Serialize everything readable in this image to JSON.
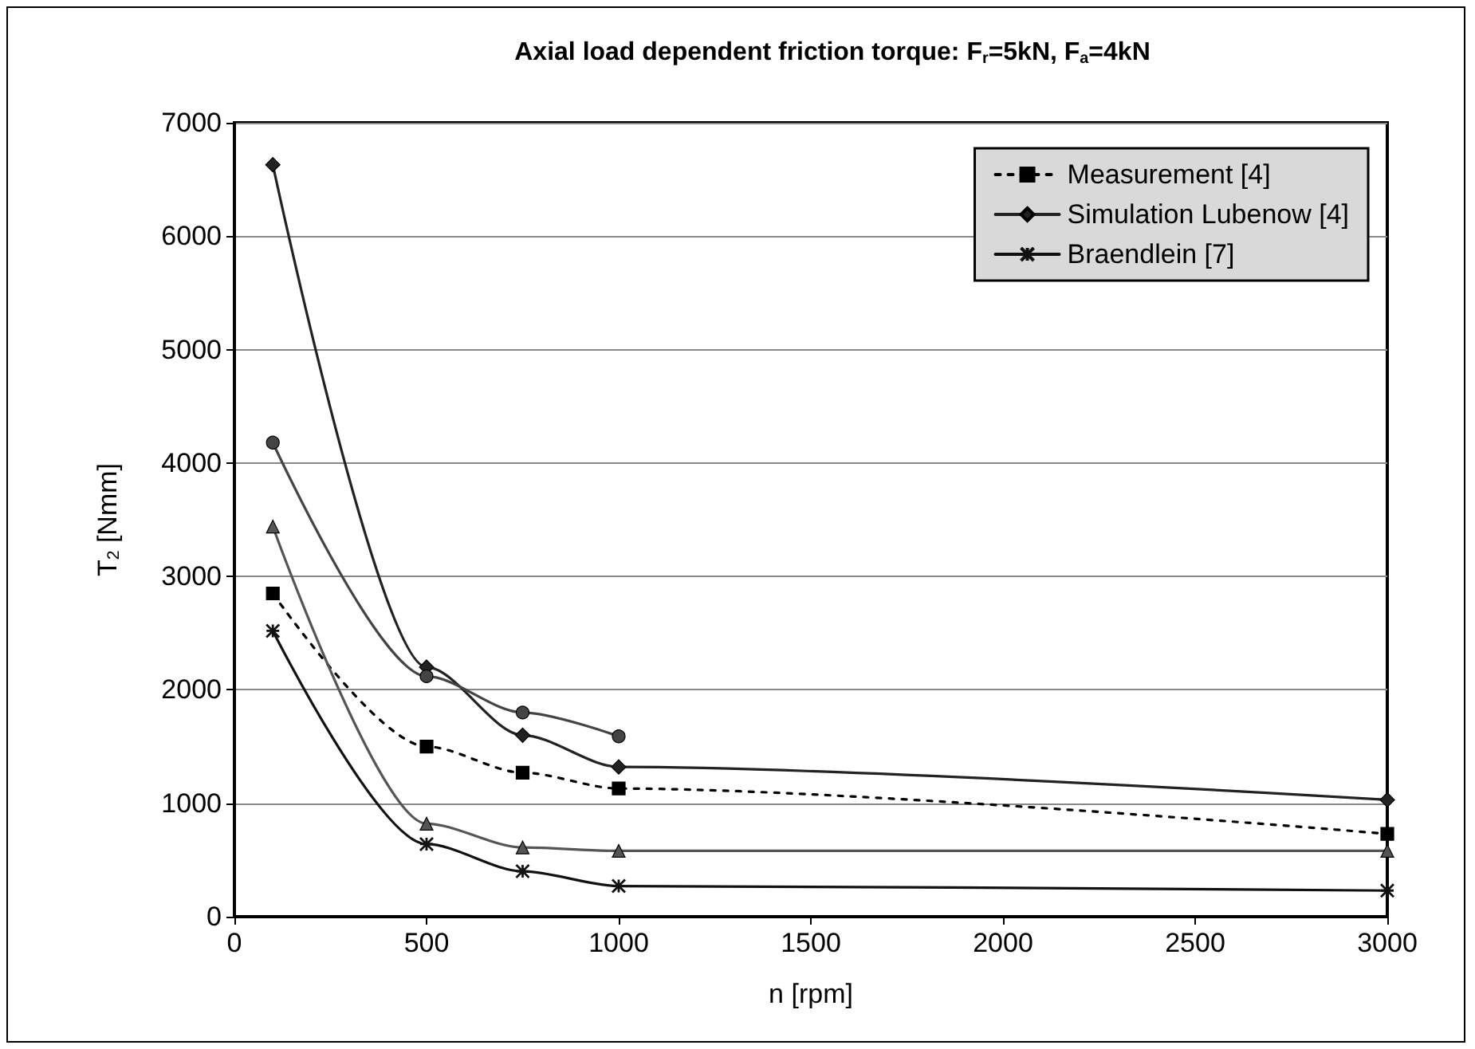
{
  "chart_data": {
    "type": "line",
    "title": "Axial load dependent friction torque: F$_{r}$=5kN, F$_{a}$=4kN",
    "xlabel": "n [rpm]",
    "ylabel": "T$_{2}$ [Nmm]",
    "x": [
      100,
      500,
      750,
      1000,
      3000
    ],
    "series": [
      {
        "name": "Measurement [4]",
        "color": "#000000",
        "marker": "square",
        "line_style": "dotted",
        "values": [
          2850,
          1500,
          1270,
          1130,
          730
        ]
      },
      {
        "name": "Simulation Lubenow [4]",
        "color": "#222222",
        "marker": "diamond",
        "line_style": "solid",
        "values": [
          6630,
          2200,
          1600,
          1320,
          1030
        ]
      },
      {
        "color": "#444444",
        "marker": "circle",
        "line_style": "solid",
        "values": [
          4180,
          2120,
          1800,
          1590,
          null
        ]
      },
      {
        "color": "#555555",
        "marker": "triangle",
        "line_style": "solid",
        "values": [
          3440,
          820,
          610,
          580,
          580
        ]
      },
      {
        "name": "Braendlein [7]",
        "color": "#111111",
        "marker": "cross",
        "line_style": "solid",
        "values": [
          2520,
          640,
          400,
          270,
          230
        ]
      }
    ],
    "xlim": [
      0,
      3000
    ],
    "xticks": [
      0,
      500,
      1000,
      1500,
      2000,
      2500,
      3000
    ],
    "ylim": [
      0,
      7000
    ],
    "yticks": [
      0,
      1000,
      2000,
      3000,
      4000,
      5000,
      6000,
      7000
    ],
    "grid": "y",
    "legend": "top right"
  }
}
